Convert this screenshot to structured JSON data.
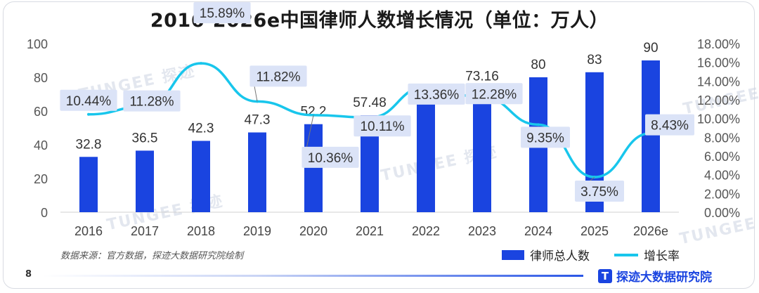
{
  "title": "2016-2026e中国律师人数增长情况（单位：万人）",
  "source": "数据来源：官方数据，探迹大数据研究院绘制",
  "page_number": "8",
  "brand": {
    "logo": "T",
    "name": "探迹大数据研究院"
  },
  "watermark": "TUNGEE 探迹",
  "colors": {
    "bar": "#1a44e0",
    "line": "#18c6ec",
    "label_box": "#dbe3f7"
  },
  "chart_data": {
    "type": "bar",
    "categories": [
      "2016",
      "2017",
      "2018",
      "2019",
      "2020",
      "2021",
      "2022",
      "2023",
      "2024",
      "2025",
      "2026e"
    ],
    "series": [
      {
        "name": "律师总人数",
        "type": "bar",
        "axis": "left",
        "values": [
          32.8,
          36.5,
          42.3,
          47.3,
          52.2,
          57.48,
          65.16,
          73.16,
          80,
          83,
          90
        ],
        "labels": [
          "32.8",
          "36.5",
          "42.3",
          "47.3",
          "52.2",
          "57.48",
          "65.16",
          "73.16",
          "80",
          "83",
          "90"
        ]
      },
      {
        "name": "增长率",
        "type": "line",
        "axis": "right",
        "values": [
          10.44,
          11.28,
          15.89,
          11.82,
          10.36,
          10.11,
          13.36,
          12.28,
          9.35,
          3.75,
          8.43
        ],
        "labels": [
          "10.44%",
          "11.28%",
          "15.89%",
          "11.82%",
          "10.36%",
          "10.11%",
          "13.36%",
          "12.28%",
          "9.35%",
          "3.75%",
          "8.43%"
        ]
      }
    ],
    "y_left": {
      "min": 0,
      "max": 100,
      "ticks": [
        "0",
        "20",
        "40",
        "60",
        "80",
        "100"
      ]
    },
    "y_right": {
      "min": 0,
      "max": 18,
      "ticks": [
        "0.00%",
        "2.00%",
        "4.00%",
        "6.00%",
        "8.00%",
        "10.00%",
        "12.00%",
        "14.00%",
        "16.00%",
        "18.00%"
      ]
    },
    "legend_position": "bottom-right",
    "grid": false
  }
}
